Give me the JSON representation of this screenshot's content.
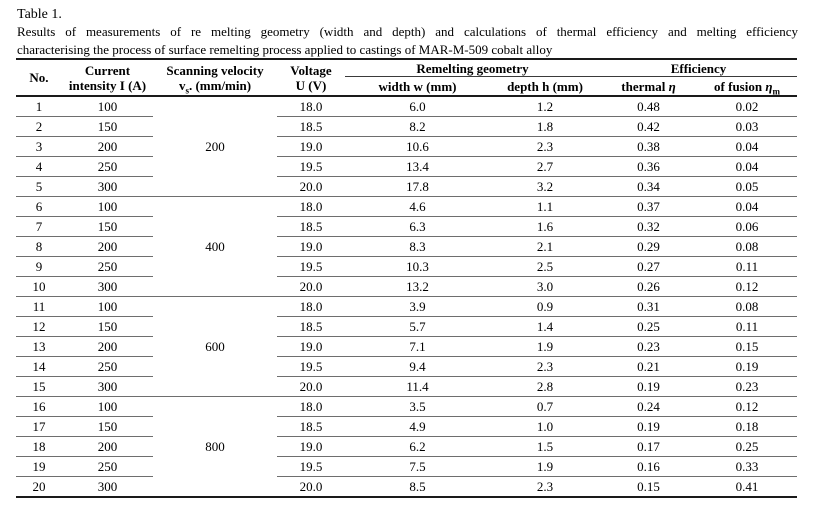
{
  "document": {
    "table_label": "Table 1.",
    "caption_lines": [
      "Results of measurements of re melting geometry (width and depth) and calculations of thermal efficiency and melting efficiency",
      "characterising the process of surface remelting process applied to castings of MAR-M-509 cobalt alloy"
    ]
  },
  "colors": {
    "background": "#ffffff",
    "text": "#000000",
    "rule_light": "#6e6e6e",
    "rule_dark": "#1a1a1a"
  },
  "table": {
    "headers": {
      "no": "No.",
      "current": {
        "line1": "Current",
        "line2": "intensity I (A)"
      },
      "scanning": {
        "line1": "Scanning velocity",
        "symbol": "v",
        "sub": "s",
        "rest": ". (mm/min)"
      },
      "voltage": {
        "line1": "Voltage",
        "line2": "U (V)"
      },
      "remelting_group": "Remelting geometry",
      "efficiency_group": "Efficiency",
      "width": "width w (mm)",
      "depth": "depth h (mm)",
      "thermal": {
        "text": "thermal",
        "symbol": "η"
      },
      "fusion": {
        "text": "of fusion",
        "symbol": "η",
        "sub": "m"
      }
    },
    "groups": [
      {
        "velocity": "200",
        "rows": [
          {
            "no": "1",
            "current": "100",
            "voltage": "18.0",
            "width": "6.0",
            "depth": "1.2",
            "thermal": "0.48",
            "fusion": "0.02"
          },
          {
            "no": "2",
            "current": "150",
            "voltage": "18.5",
            "width": "8.2",
            "depth": "1.8",
            "thermal": "0.42",
            "fusion": "0.03"
          },
          {
            "no": "3",
            "current": "200",
            "voltage": "19.0",
            "width": "10.6",
            "depth": "2.3",
            "thermal": "0.38",
            "fusion": "0.04"
          },
          {
            "no": "4",
            "current": "250",
            "voltage": "19.5",
            "width": "13.4",
            "depth": "2.7",
            "thermal": "0.36",
            "fusion": "0.04"
          },
          {
            "no": "5",
            "current": "300",
            "voltage": "20.0",
            "width": "17.8",
            "depth": "3.2",
            "thermal": "0.34",
            "fusion": "0.05"
          }
        ]
      },
      {
        "velocity": "400",
        "rows": [
          {
            "no": "6",
            "current": "100",
            "voltage": "18.0",
            "width": "4.6",
            "depth": "1.1",
            "thermal": "0.37",
            "fusion": "0.04"
          },
          {
            "no": "7",
            "current": "150",
            "voltage": "18.5",
            "width": "6.3",
            "depth": "1.6",
            "thermal": "0.32",
            "fusion": "0.06"
          },
          {
            "no": "8",
            "current": "200",
            "voltage": "19.0",
            "width": "8.3",
            "depth": "2.1",
            "thermal": "0.29",
            "fusion": "0.08"
          },
          {
            "no": "9",
            "current": "250",
            "voltage": "19.5",
            "width": "10.3",
            "depth": "2.5",
            "thermal": "0.27",
            "fusion": "0.11"
          },
          {
            "no": "10",
            "current": "300",
            "voltage": "20.0",
            "width": "13.2",
            "depth": "3.0",
            "thermal": "0.26",
            "fusion": "0.12"
          }
        ]
      },
      {
        "velocity": "600",
        "rows": [
          {
            "no": "11",
            "current": "100",
            "voltage": "18.0",
            "width": "3.9",
            "depth": "0.9",
            "thermal": "0.31",
            "fusion": "0.08"
          },
          {
            "no": "12",
            "current": "150",
            "voltage": "18.5",
            "width": "5.7",
            "depth": "1.4",
            "thermal": "0.25",
            "fusion": "0.11"
          },
          {
            "no": "13",
            "current": "200",
            "voltage": "19.0",
            "width": "7.1",
            "depth": "1.9",
            "thermal": "0.23",
            "fusion": "0.15"
          },
          {
            "no": "14",
            "current": "250",
            "voltage": "19.5",
            "width": "9.4",
            "depth": "2.3",
            "thermal": "0.21",
            "fusion": "0.19"
          },
          {
            "no": "15",
            "current": "300",
            "voltage": "20.0",
            "width": "11.4",
            "depth": "2.8",
            "thermal": "0.19",
            "fusion": "0.23"
          }
        ]
      },
      {
        "velocity": "800",
        "rows": [
          {
            "no": "16",
            "current": "100",
            "voltage": "18.0",
            "width": "3.5",
            "depth": "0.7",
            "thermal": "0.24",
            "fusion": "0.12"
          },
          {
            "no": "17",
            "current": "150",
            "voltage": "18.5",
            "width": "4.9",
            "depth": "1.0",
            "thermal": "0.19",
            "fusion": "0.18"
          },
          {
            "no": "18",
            "current": "200",
            "voltage": "19.0",
            "width": "6.2",
            "depth": "1.5",
            "thermal": "0.17",
            "fusion": "0.25"
          },
          {
            "no": "19",
            "current": "250",
            "voltage": "19.5",
            "width": "7.5",
            "depth": "1.9",
            "thermal": "0.16",
            "fusion": "0.33"
          },
          {
            "no": "20",
            "current": "300",
            "voltage": "20.0",
            "width": "8.5",
            "depth": "2.3",
            "thermal": "0.15",
            "fusion": "0.41"
          }
        ]
      }
    ]
  }
}
